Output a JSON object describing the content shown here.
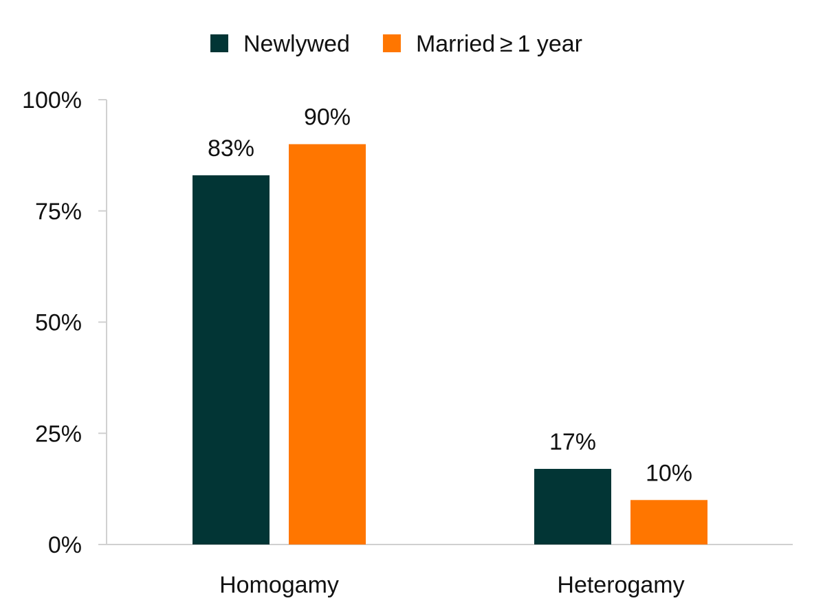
{
  "chart_data": {
    "type": "bar",
    "categories": [
      "Homogamy",
      "Heterogamy"
    ],
    "series": [
      {
        "name": "Newlywed",
        "color": "#023535",
        "values": [
          83,
          17
        ],
        "labels": [
          "83%",
          "17%"
        ]
      },
      {
        "name": "Married ≥ 1 year",
        "color": "#ff7600",
        "values": [
          90,
          10
        ],
        "labels": [
          "90%",
          "10%"
        ]
      }
    ],
    "yticks": [
      0,
      25,
      50,
      75,
      100
    ],
    "ytick_labels": [
      "0%",
      "25%",
      "50%",
      "75%",
      "100%"
    ],
    "ylim": [
      0,
      100
    ],
    "grid": false,
    "legend": "top-center",
    "title": "",
    "xlabel": "",
    "ylabel": ""
  }
}
